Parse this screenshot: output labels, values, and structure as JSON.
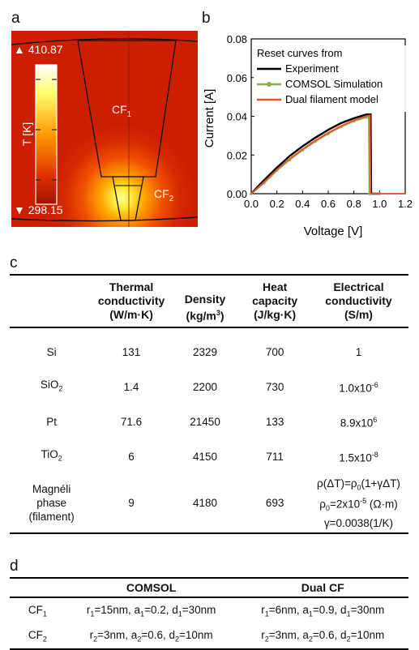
{
  "panel_labels": {
    "a": "a",
    "b": "b",
    "c": "c",
    "d": "d"
  },
  "panel_a": {
    "t_max": "▲ 410.87",
    "t_min": "▼ 298.15",
    "colorbar_label": "T [K]",
    "cf1": "CF",
    "cf1_sub": "1",
    "cf2": "CF",
    "cf2_sub": "2",
    "colors": {
      "background": "#cc1f00",
      "hot": "#ffff80"
    }
  },
  "chart_data": {
    "type": "line",
    "title": "",
    "xlabel": "Voltage [V]",
    "ylabel": "Current [A]",
    "xlim": [
      0.0,
      1.2
    ],
    "ylim": [
      0.0,
      0.08
    ],
    "xticks": [
      "0.0",
      "0.2",
      "0.4",
      "0.6",
      "0.8",
      "1.0",
      "1.2"
    ],
    "yticks": [
      "0.00",
      "0.02",
      "0.04",
      "0.06",
      "0.08"
    ],
    "legend_title": "Reset curves from",
    "legend_position": "top-left",
    "series": [
      {
        "name": "Experiment",
        "color": "#000000",
        "x": [
          0.0,
          0.05,
          0.1,
          0.2,
          0.3,
          0.4,
          0.5,
          0.6,
          0.7,
          0.8,
          0.9,
          0.93,
          0.935,
          1.0
        ],
        "y": [
          0.0,
          0.0035,
          0.007,
          0.0135,
          0.0195,
          0.0245,
          0.029,
          0.033,
          0.0365,
          0.039,
          0.041,
          0.041,
          0.0,
          0.0
        ]
      },
      {
        "name": "COMSOL Simulation",
        "color": "#8db04a",
        "x": [
          0.0,
          0.1,
          0.2,
          0.3,
          0.4,
          0.5,
          0.6,
          0.7,
          0.8,
          0.9,
          0.915,
          0.92,
          1.0
        ],
        "y": [
          0.0,
          0.0055,
          0.012,
          0.0175,
          0.0225,
          0.027,
          0.031,
          0.0345,
          0.0375,
          0.0395,
          0.0398,
          0.0,
          0.0
        ]
      },
      {
        "name": "Dual filament model",
        "color": "#e8502a",
        "x": [
          0.0,
          0.1,
          0.2,
          0.3,
          0.4,
          0.5,
          0.6,
          0.7,
          0.8,
          0.9,
          0.925,
          0.93,
          1.0,
          1.2
        ],
        "y": [
          0.0,
          0.006,
          0.0125,
          0.018,
          0.023,
          0.0275,
          0.0315,
          0.035,
          0.038,
          0.0402,
          0.0405,
          0.0,
          0.0,
          0.0
        ]
      }
    ]
  },
  "table_c": {
    "headers": [
      {
        "l1": "",
        "l2": "",
        "l3": ""
      },
      {
        "l1": "Thermal",
        "l2": "conductivity",
        "l3": "(W/m·K)"
      },
      {
        "l1": "",
        "l2": "Density",
        "l3": "(kg/m",
        "sup": "3",
        "tail": ")"
      },
      {
        "l1": "Heat",
        "l2": "capacity",
        "l3": "(J/kg·K)"
      },
      {
        "l1": "Electrical",
        "l2": "conductivity",
        "l3": "(S/m)"
      }
    ],
    "rows": [
      {
        "mat": "Si",
        "mat_sub": "",
        "k": "131",
        "rho": "2329",
        "cp": "700",
        "sigma": "1",
        "sigma_exp": ""
      },
      {
        "mat": "SiO",
        "mat_sub": "2",
        "k": "1.4",
        "rho": "2200",
        "cp": "730",
        "sigma": "1.0x10",
        "sigma_exp": "-6"
      },
      {
        "mat": "Pt",
        "mat_sub": "",
        "k": "71.6",
        "rho": "21450",
        "cp": "133",
        "sigma": "8.9x10",
        "sigma_exp": "6"
      },
      {
        "mat": "TiO",
        "mat_sub": "2",
        "k": "6",
        "rho": "4150",
        "cp": "711",
        "sigma": "1.5x10",
        "sigma_exp": "-8"
      }
    ],
    "magneli": {
      "l1": "Magnéli",
      "l2": "phase",
      "l3": "(filament)",
      "k": "9",
      "rho": "4180",
      "cp": "693",
      "eq1_a": "ρ(ΔT)=ρ",
      "eq1_sub": "0",
      "eq1_b": "(1+γΔT)",
      "eq2_a": "ρ",
      "eq2_sub": "0",
      "eq2_b": "=2x10",
      "eq2_sup": "-5",
      "eq2_c": " (Ω·m)",
      "eq3": "γ=0.0038(1/K)"
    }
  },
  "table_d": {
    "headers": [
      "",
      "COMSOL",
      "Dual CF"
    ],
    "rows": [
      {
        "label": "CF",
        "label_sub": "1",
        "comsol": [
          [
            "r",
            "1",
            "=15nm, "
          ],
          [
            "a",
            "1",
            "=0.2, "
          ],
          [
            "d",
            "1",
            "=30nm"
          ]
        ],
        "dual": [
          [
            "r",
            "1",
            "=6nm, "
          ],
          [
            "a",
            "1",
            "=0.9, "
          ],
          [
            "d",
            "1",
            "=30nm"
          ]
        ]
      },
      {
        "label": "CF",
        "label_sub": "2",
        "comsol": [
          [
            "r",
            "2",
            "=3nm, "
          ],
          [
            "a",
            "2",
            "=0.6, "
          ],
          [
            "d",
            "2",
            "=10nm"
          ]
        ],
        "dual": [
          [
            "r",
            "2",
            "=3nm, "
          ],
          [
            "a",
            "2",
            "=0.6, "
          ],
          [
            "d",
            "2",
            "=10nm"
          ]
        ]
      }
    ]
  }
}
